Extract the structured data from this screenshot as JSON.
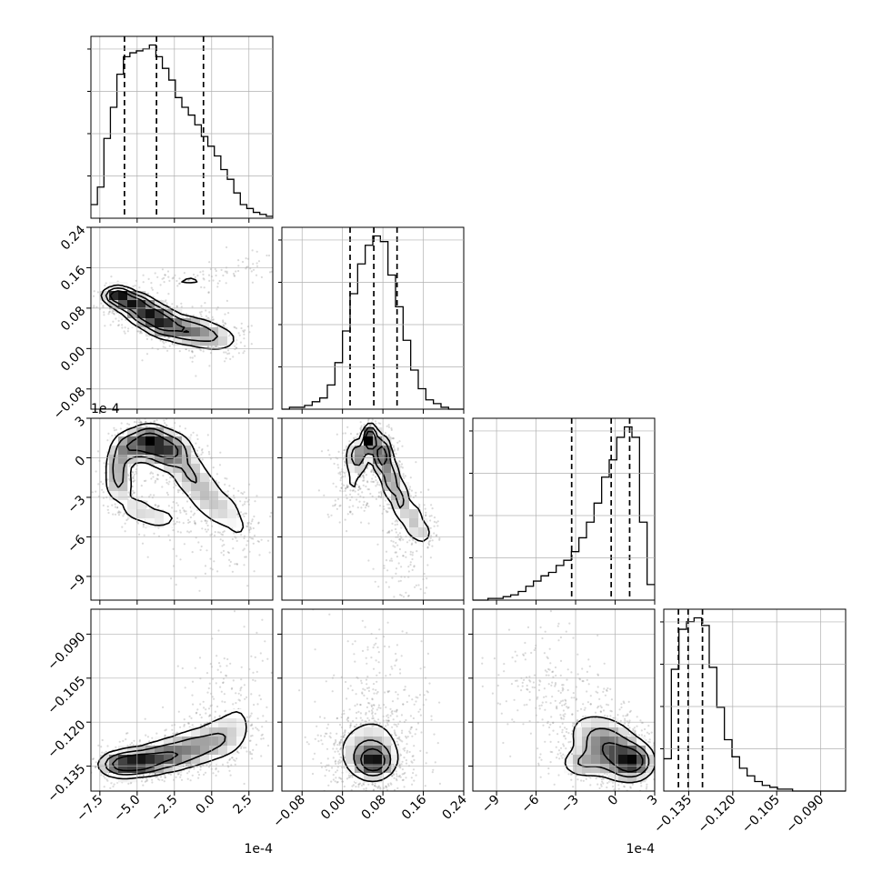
{
  "chart_data": {
    "type": "corner",
    "parameters": [
      {
        "id": "p0",
        "range": [
          -8.1,
          4.1
        ],
        "ticks": [
          -7.5,
          -5.0,
          -2.5,
          0.0,
          2.5
        ],
        "tick_labels": [
          "−7.5",
          "−5.0",
          "−2.5",
          "0.0",
          "2.5"
        ],
        "offset_label": "1e-4",
        "quantiles": [
          -5.85,
          -3.7,
          -0.55
        ]
      },
      {
        "id": "p1",
        "range": [
          -0.12,
          0.24
        ],
        "ticks": [
          -0.08,
          0.0,
          0.08,
          0.16,
          0.24
        ],
        "tick_labels": [
          "−0.08",
          "0.00",
          "0.08",
          "0.16",
          "0.24"
        ],
        "offset_label": "",
        "quantiles": [
          0.015,
          0.062,
          0.108
        ]
      },
      {
        "id": "p2",
        "range": [
          -10.8,
          3.0
        ],
        "ticks": [
          -9,
          -6,
          -3,
          0,
          3
        ],
        "tick_labels": [
          "−9",
          "−6",
          "−3",
          "0",
          "3"
        ],
        "offset_label": "1e-4",
        "quantiles": [
          -3.3,
          -0.3,
          1.1
        ]
      },
      {
        "id": "p3",
        "range": [
          -0.1435,
          -0.0815
        ],
        "ticks": [
          -0.135,
          -0.12,
          -0.105,
          -0.09
        ],
        "tick_labels": [
          "−0.135",
          "−0.120",
          "−0.105",
          "−0.090"
        ],
        "offset_label": "",
        "quantiles": [
          -0.1385,
          -0.1352,
          -0.1303
        ]
      }
    ],
    "histograms": [
      [
        0.07,
        0.16,
        0.41,
        0.57,
        0.74,
        0.83,
        0.85,
        0.86,
        0.87,
        0.89,
        0.83,
        0.77,
        0.71,
        0.62,
        0.57,
        0.53,
        0.48,
        0.42,
        0.37,
        0.32,
        0.25,
        0.2,
        0.13,
        0.07,
        0.05,
        0.03,
        0.02,
        0.01
      ],
      [
        0.0,
        0.01,
        0.01,
        0.02,
        0.04,
        0.06,
        0.13,
        0.25,
        0.42,
        0.62,
        0.78,
        0.88,
        0.93,
        0.9,
        0.72,
        0.55,
        0.37,
        0.21,
        0.11,
        0.05,
        0.03,
        0.01,
        0.0,
        0.0
      ],
      [
        0.0,
        0.0,
        0.01,
        0.01,
        0.02,
        0.03,
        0.05,
        0.08,
        0.11,
        0.14,
        0.16,
        0.2,
        0.23,
        0.28,
        0.36,
        0.45,
        0.56,
        0.71,
        0.81,
        0.94,
        1.0,
        0.94,
        0.45,
        0.09
      ],
      [
        0.17,
        0.64,
        0.85,
        0.89,
        0.91,
        0.87,
        0.65,
        0.44,
        0.27,
        0.18,
        0.12,
        0.08,
        0.05,
        0.03,
        0.02,
        0.01,
        0.01,
        0.0,
        0.0,
        0.0,
        0.0,
        0.0,
        0.0,
        0.0
      ]
    ],
    "densities": {
      "1_0": [
        {
          "x": -6.3,
          "y": 0.105,
          "w": 1.0,
          "sx": 0.55,
          "sy": 0.01
        },
        {
          "x": -5.3,
          "y": 0.09,
          "w": 0.95,
          "sx": 0.7,
          "sy": 0.011
        },
        {
          "x": -4.3,
          "y": 0.068,
          "w": 0.9,
          "sx": 0.75,
          "sy": 0.013
        },
        {
          "x": -3.3,
          "y": 0.05,
          "w": 0.75,
          "sx": 0.7,
          "sy": 0.014
        },
        {
          "x": -2.0,
          "y": 0.038,
          "w": 0.5,
          "sx": 0.9,
          "sy": 0.015
        },
        {
          "x": -0.8,
          "y": 0.03,
          "w": 0.35,
          "sx": 0.9,
          "sy": 0.016
        },
        {
          "x": 0.5,
          "y": 0.018,
          "w": 0.25,
          "sx": 0.9,
          "sy": 0.016
        },
        {
          "x": -1.5,
          "y": 0.135,
          "w": 0.18,
          "sx": 1.0,
          "sy": 0.008
        },
        {
          "x": 0.8,
          "y": 0.15,
          "w": 0.12,
          "sx": 1.1,
          "sy": 0.008
        },
        {
          "x": 2.8,
          "y": 0.168,
          "w": 0.08,
          "sx": 1.0,
          "sy": 0.012
        }
      ],
      "2_0": [
        {
          "x": -4.2,
          "y": 1.2,
          "w": 1.0,
          "sx": 0.7,
          "sy": 0.7
        },
        {
          "x": -2.8,
          "y": 0.5,
          "w": 0.8,
          "sx": 0.8,
          "sy": 0.8
        },
        {
          "x": -5.6,
          "y": 0.8,
          "w": 0.55,
          "sx": 0.6,
          "sy": 0.7
        },
        {
          "x": -6.3,
          "y": -0.6,
          "w": 0.4,
          "sx": 0.5,
          "sy": 0.9
        },
        {
          "x": -6.2,
          "y": -2.2,
          "w": 0.3,
          "sx": 0.6,
          "sy": 0.8
        },
        {
          "x": -5.0,
          "y": -3.9,
          "w": 0.25,
          "sx": 0.7,
          "sy": 0.6
        },
        {
          "x": -3.5,
          "y": -4.6,
          "w": 0.25,
          "sx": 0.8,
          "sy": 0.5
        },
        {
          "x": -1.5,
          "y": -1.2,
          "w": 0.35,
          "sx": 0.7,
          "sy": 0.9
        },
        {
          "x": -0.5,
          "y": -2.6,
          "w": 0.3,
          "sx": 0.7,
          "sy": 0.9
        },
        {
          "x": 0.6,
          "y": -3.8,
          "w": 0.25,
          "sx": 0.8,
          "sy": 0.8
        },
        {
          "x": 2.0,
          "y": -5.2,
          "w": 0.12,
          "sx": 0.9,
          "sy": 1.0
        },
        {
          "x": 0.5,
          "y": -6.8,
          "w": 0.08,
          "sx": 1.5,
          "sy": 1.3
        }
      ],
      "2_1": [
        {
          "x": 0.055,
          "y": 1.4,
          "w": 1.0,
          "sx": 0.008,
          "sy": 0.6
        },
        {
          "x": 0.078,
          "y": 0.2,
          "w": 0.75,
          "sx": 0.01,
          "sy": 0.8
        },
        {
          "x": 0.03,
          "y": 0.2,
          "w": 0.45,
          "sx": 0.012,
          "sy": 0.7
        },
        {
          "x": 0.095,
          "y": -1.6,
          "w": 0.45,
          "sx": 0.01,
          "sy": 0.9
        },
        {
          "x": 0.115,
          "y": -3.2,
          "w": 0.35,
          "sx": 0.01,
          "sy": 0.9
        },
        {
          "x": 0.14,
          "y": -4.6,
          "w": 0.25,
          "sx": 0.012,
          "sy": 0.8
        },
        {
          "x": 0.16,
          "y": -5.7,
          "w": 0.18,
          "sx": 0.012,
          "sy": 0.6
        },
        {
          "x": 0.02,
          "y": -2.0,
          "w": 0.12,
          "sx": 0.02,
          "sy": 1.3
        },
        {
          "x": 0.12,
          "y": -7.5,
          "w": 0.08,
          "sx": 0.02,
          "sy": 1.5
        }
      ],
      "3_0": [
        {
          "x": -4.8,
          "y": -0.1337,
          "w": 1.0,
          "sx": 0.9,
          "sy": 0.0025
        },
        {
          "x": -6.2,
          "y": -0.1345,
          "w": 0.75,
          "sx": 0.8,
          "sy": 0.0025
        },
        {
          "x": -3.0,
          "y": -0.1315,
          "w": 0.7,
          "sx": 1.0,
          "sy": 0.003
        },
        {
          "x": -1.2,
          "y": -0.1285,
          "w": 0.5,
          "sx": 1.0,
          "sy": 0.0035
        },
        {
          "x": 0.5,
          "y": -0.1255,
          "w": 0.35,
          "sx": 0.9,
          "sy": 0.004
        },
        {
          "x": 1.8,
          "y": -0.1205,
          "w": 0.15,
          "sx": 0.9,
          "sy": 0.006
        },
        {
          "x": 1.5,
          "y": -0.108,
          "w": 0.06,
          "sx": 1.4,
          "sy": 0.008
        }
      ],
      "3_1": [
        {
          "x": 0.062,
          "y": -0.1335,
          "w": 1.0,
          "sx": 0.02,
          "sy": 0.003
        },
        {
          "x": 0.05,
          "y": -0.13,
          "w": 0.45,
          "sx": 0.035,
          "sy": 0.0055
        },
        {
          "x": 0.07,
          "y": -0.118,
          "w": 0.08,
          "sx": 0.04,
          "sy": 0.012
        }
      ],
      "3_2": [
        {
          "x": 1.3,
          "y": -0.1335,
          "w": 1.0,
          "sx": 0.9,
          "sy": 0.0035
        },
        {
          "x": -0.3,
          "y": -0.13,
          "w": 0.65,
          "sx": 1.2,
          "sy": 0.005
        },
        {
          "x": -2.6,
          "y": -0.134,
          "w": 0.35,
          "sx": 0.9,
          "sy": 0.0028
        },
        {
          "x": -1.5,
          "y": -0.1245,
          "w": 0.3,
          "sx": 1.2,
          "sy": 0.0045
        },
        {
          "x": -4.2,
          "y": -0.113,
          "w": 0.12,
          "sx": 1.6,
          "sy": 0.007
        },
        {
          "x": -6.5,
          "y": -0.102,
          "w": 0.05,
          "sx": 1.5,
          "sy": 0.007
        }
      ]
    },
    "contour_levels": [
      0.13,
      0.33,
      0.6
    ]
  }
}
